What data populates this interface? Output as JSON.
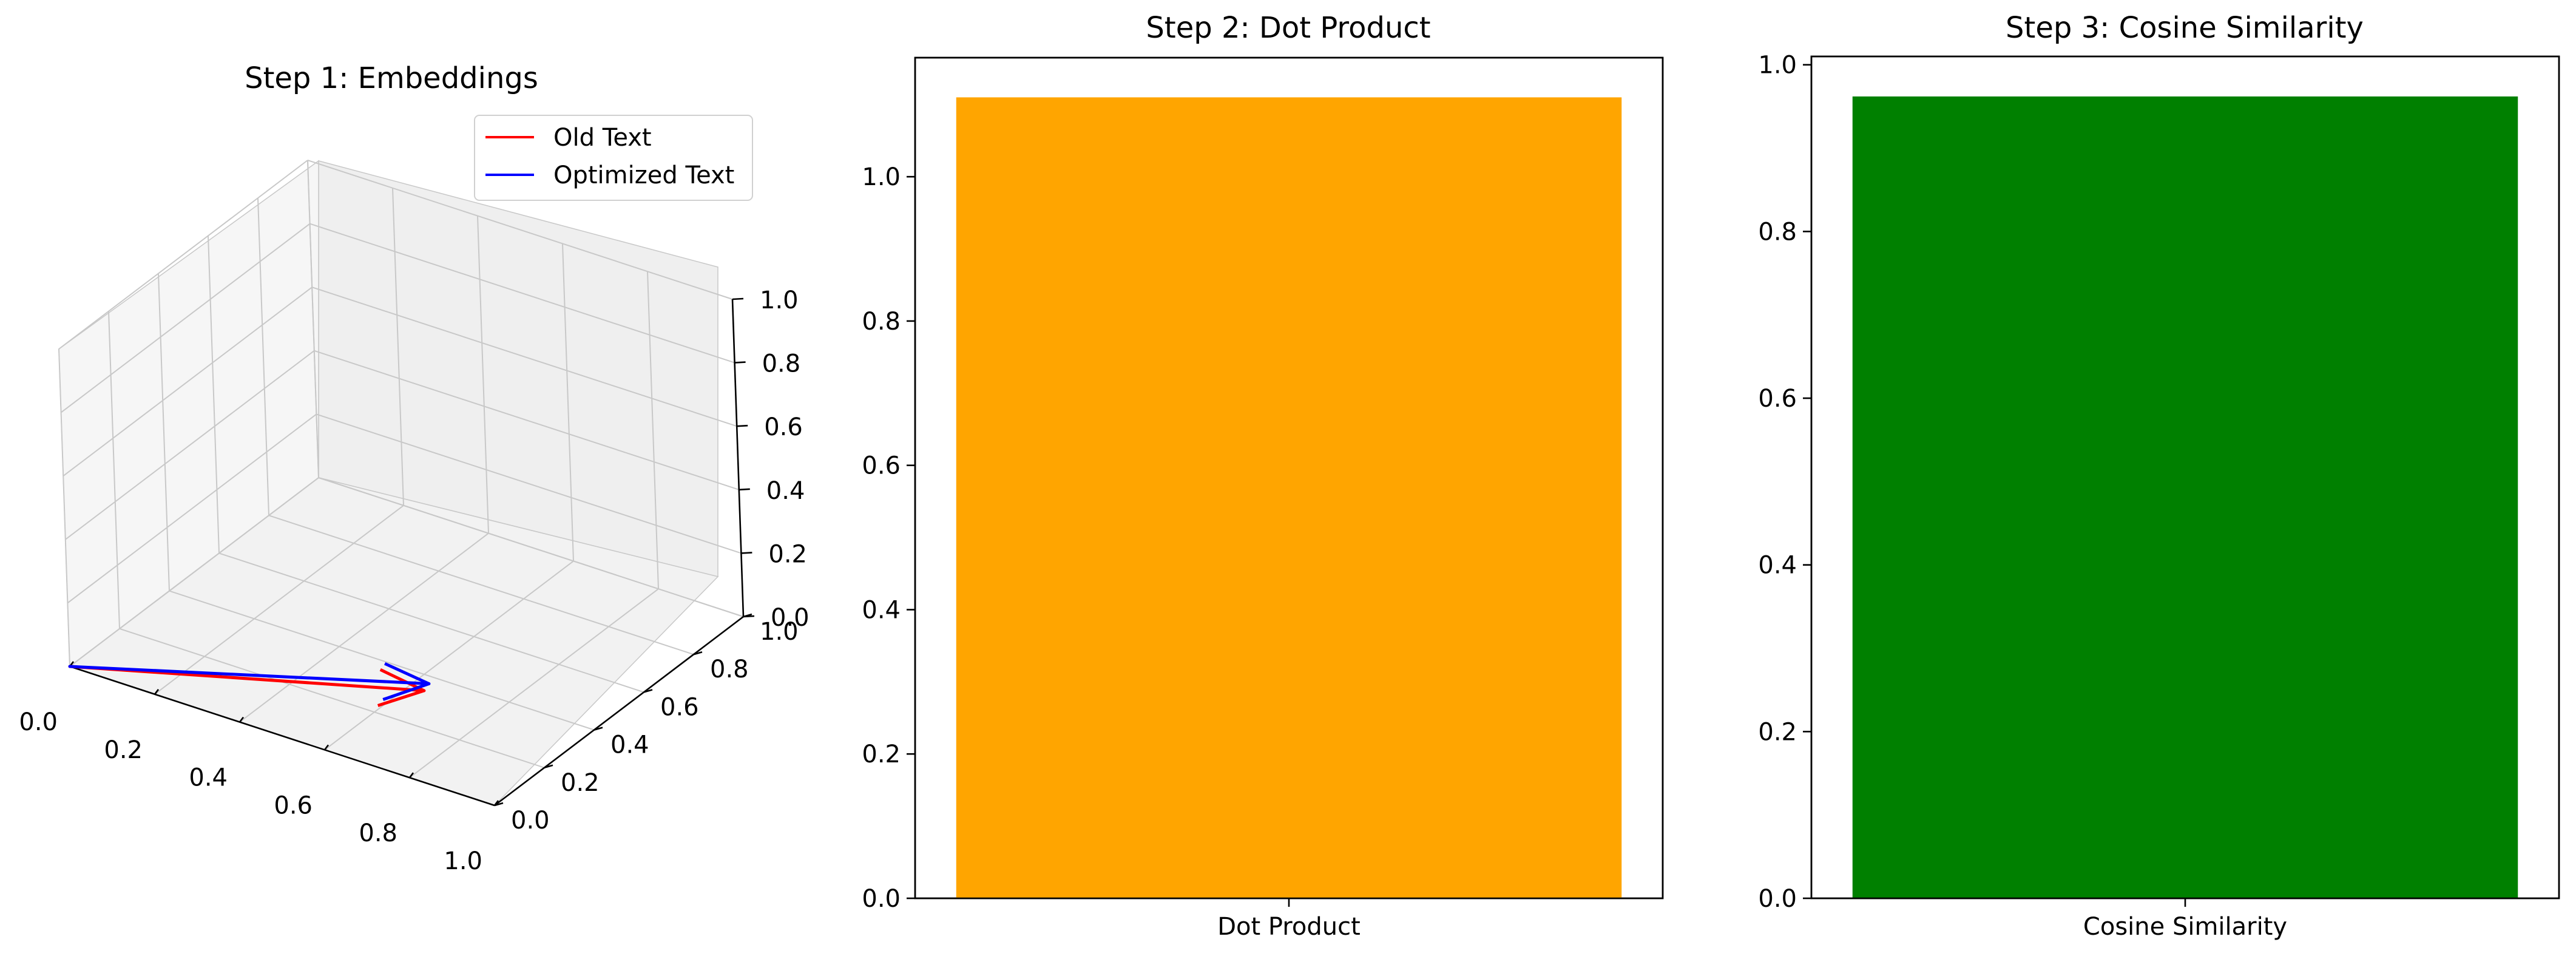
{
  "chart_data": [
    {
      "type": "3d-quiver",
      "title": "Step 1: Embeddings",
      "xlim": [
        0,
        1
      ],
      "ylim": [
        0,
        1
      ],
      "zlim": [
        0,
        1
      ],
      "xticks": [
        "0.0",
        "0.2",
        "0.4",
        "0.6",
        "0.8",
        "1.0"
      ],
      "yticks": [
        "0.0",
        "0.2",
        "0.4",
        "0.6",
        "0.8",
        "1.0"
      ],
      "zticks": [
        "0.0",
        "0.2",
        "0.4",
        "0.6",
        "0.8",
        "1.0"
      ],
      "legend_position": "top-right",
      "series": [
        {
          "name": "Old Text",
          "color": "#ff0000",
          "origin": [
            0,
            0,
            0
          ],
          "vector": [
            0.72,
            0.2,
            0.12
          ]
        },
        {
          "name": "Optimized Text",
          "color": "#0000ff",
          "origin": [
            0,
            0,
            0
          ],
          "vector": [
            0.72,
            0.22,
            0.13
          ]
        }
      ],
      "grid": true
    },
    {
      "type": "bar",
      "title": "Step 2: Dot Product",
      "categories": [
        "Dot Product"
      ],
      "values": [
        1.11
      ],
      "color": "#ffa500",
      "ylim": [
        0,
        1.165
      ],
      "yticks": [
        "0.0",
        "0.2",
        "0.4",
        "0.6",
        "0.8",
        "1.0"
      ]
    },
    {
      "type": "bar",
      "title": "Step 3: Cosine Similarity",
      "categories": [
        "Cosine Similarity"
      ],
      "values": [
        0.962
      ],
      "color": "#008000",
      "ylim": [
        0,
        1.01
      ],
      "yticks": [
        "0.0",
        "0.2",
        "0.4",
        "0.6",
        "0.8",
        "1.0"
      ]
    }
  ]
}
